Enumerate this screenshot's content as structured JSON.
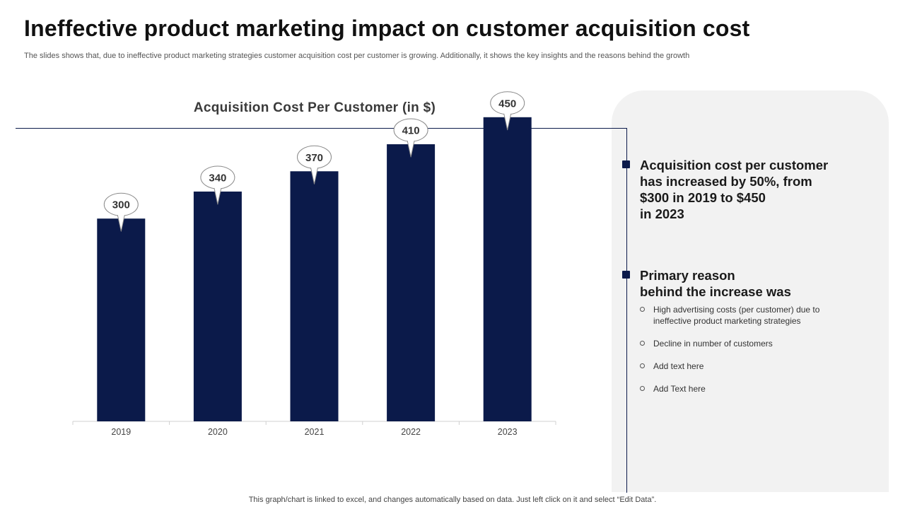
{
  "title": "Ineffective product marketing impact on customer acquisition cost",
  "subtitle": "The slides shows that, due to ineffective product marketing strategies customer acquisition cost per customer is growing. Additionally, it shows the key insights and the reasons behind the growth",
  "colors": {
    "bar": "#0b1a4a",
    "panel": "#f2f2f2",
    "accent": "#0b1a4a"
  },
  "chart_data": {
    "type": "bar",
    "title": "Acquisition Cost Per Customer (in $)",
    "categories": [
      "2019",
      "2020",
      "2021",
      "2022",
      "2023"
    ],
    "values": [
      300,
      340,
      370,
      410,
      450
    ],
    "xlabel": "",
    "ylabel": "",
    "ylim": [
      0,
      500
    ],
    "grid": false,
    "data_labels": true
  },
  "insights": {
    "first": [
      "Acquisition cost per customer",
      "has increased by 50%, from",
      "$300 in 2019 to $450",
      "in 2023"
    ],
    "second": [
      "Primary reason",
      "behind the increase was"
    ],
    "bullets": [
      [
        "High advertising  costs (per customer) due to",
        "ineffective  product  marketing strategies"
      ],
      [
        "Decline in number  of customers"
      ],
      [
        "Add text here"
      ],
      [
        "Add Text  here"
      ]
    ]
  },
  "footer": "This graph/chart is linked to excel,  and changes automatically based on data. Just left click on it and select “Edit Data”."
}
